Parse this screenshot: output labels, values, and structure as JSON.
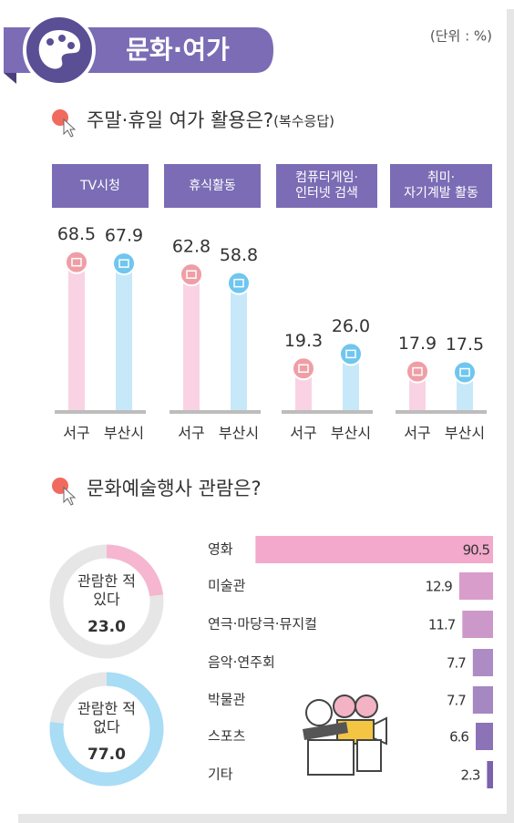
{
  "header": {
    "title": "문화·여가",
    "unit": "(단위 : %)"
  },
  "chart_data": [
    {
      "type": "bar",
      "title": "주말·휴일 여가 활용은?",
      "subtitle": "(복수응답)",
      "categories": [
        "TV시청",
        "휴식활동",
        "컴퓨터게임·\n인터넷 검색",
        "취미·\n자기계발 활동"
      ],
      "series": [
        {
          "name": "서구",
          "color": "#f9d3e3",
          "icon_color": "#ef9ea6",
          "values": [
            68.5,
            62.8,
            19.3,
            17.9
          ]
        },
        {
          "name": "부산시",
          "color": "#c7e8f8",
          "icon_color": "#6fc6ee",
          "values": [
            67.9,
            58.8,
            26,
            17.5
          ],
          "value_labels": [
            "67.9",
            "58.8",
            "26.0",
            "17.5"
          ]
        }
      ]
    },
    {
      "type": "donut",
      "title": "문화예술행사 관람은?",
      "categories": [
        "관람한 적\n있다",
        "관람한 적\n없다"
      ],
      "values": [
        23,
        77
      ],
      "value_labels": [
        "23.0",
        "77.0"
      ],
      "colors": [
        "#f6b6cf",
        "#a9dcf5"
      ]
    },
    {
      "type": "hbar",
      "categories": [
        "영화",
        "미술관",
        "연극·마당극·뮤지컬",
        "음악·연주회",
        "박물관",
        "스포츠",
        "기타"
      ],
      "values": [
        90.5,
        12.9,
        11.7,
        7.7,
        7.7,
        6.6,
        2.3
      ],
      "colors": [
        "#f3a9cb",
        "#d99dcc",
        "#cc98c9",
        "#ad8bc4",
        "#a587c2",
        "#8c72b6",
        "#7a62ae"
      ]
    }
  ]
}
